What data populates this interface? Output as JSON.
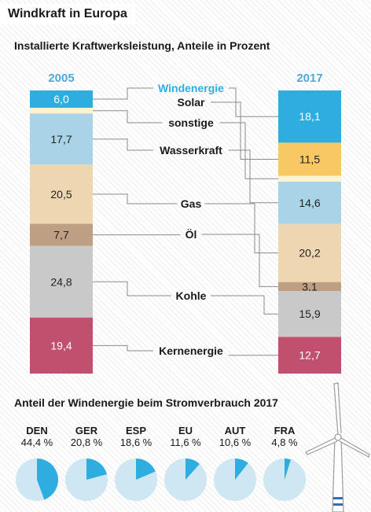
{
  "title": "Windkraft in Europa",
  "subtitle": "Installierte Kraftwerksleistung, Anteile in Prozent",
  "colors": {
    "Windenergie": "#2eaee0",
    "Solar": "#f8c862",
    "sonstige": "#fdf3d3",
    "Wasserkraft": "#a9d3e6",
    "Gas": "#eed7b0",
    "Öl": "#bf9f83",
    "Kohle": "#c9c9c9",
    "Kernenergie": "#c0506e",
    "year_label": "#4fa9d8",
    "pie_rest": "#cfe6f3"
  },
  "chart_data": [
    {
      "type": "bar",
      "stacked": true,
      "title": "Installierte Kraftwerksleistung, Anteile in Prozent",
      "categories": [
        "2005",
        "2017"
      ],
      "series": [
        {
          "name": "Windenergie",
          "values": [
            6.0,
            18.1
          ],
          "labels": [
            "6,0",
            "18,1"
          ]
        },
        {
          "name": "Solar",
          "values": [
            0,
            11.5
          ],
          "labels": [
            "",
            "11,5"
          ]
        },
        {
          "name": "sonstige",
          "values": [
            2.0,
            2.0
          ],
          "labels": [
            "",
            ""
          ]
        },
        {
          "name": "Wasserkraft",
          "values": [
            17.7,
            14.6
          ],
          "labels": [
            "17,7",
            "14,6"
          ]
        },
        {
          "name": "Gas",
          "values": [
            20.5,
            20.2
          ],
          "labels": [
            "20,5",
            "20,2"
          ]
        },
        {
          "name": "Öl",
          "values": [
            7.7,
            3.1
          ],
          "labels": [
            "7,7",
            "3,1"
          ]
        },
        {
          "name": "Kohle",
          "values": [
            24.8,
            15.9
          ],
          "labels": [
            "24,8",
            "15,9"
          ]
        },
        {
          "name": "Kernenergie",
          "values": [
            19.4,
            12.7
          ],
          "labels": [
            "19,4",
            "12,7"
          ]
        }
      ]
    },
    {
      "type": "pie",
      "title": "Anteil der Windenergie beim Stromverbrauch 2017",
      "categories": [
        "DEN",
        "GER",
        "ESP",
        "EU",
        "AUT",
        "FRA"
      ],
      "values": [
        44.4,
        20.8,
        18.6,
        11.6,
        10.6,
        4.8
      ],
      "labels": [
        "44,4 %",
        "20,8 %",
        "18,6 %",
        "11,6 %",
        "10,6 %",
        "4,8 %"
      ]
    }
  ]
}
